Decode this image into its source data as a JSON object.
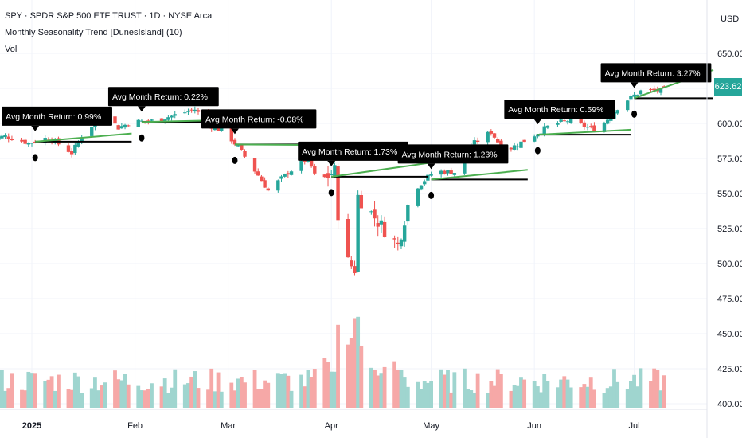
{
  "header": {
    "symbol_line": "SPY · SPDR S&P 500 ETF TRUST · 1D · NYSE Arca",
    "indicator": "Monthly Seasonality Trend [DunesIsland] (10)",
    "volume": "Vol"
  },
  "axis": {
    "currency": "USD",
    "price_ticks": [
      "650.00",
      "625.00",
      "600.00",
      "575.00",
      "550.00",
      "525.00",
      "500.00",
      "475.00",
      "450.00",
      "425.00",
      "400.00"
    ],
    "time_labels": [
      "2025",
      "Feb",
      "Mar",
      "Apr",
      "May",
      "Jun",
      "Jul"
    ]
  },
  "last_price": "623.62",
  "colors": {
    "up": "#26a69a",
    "down": "#ef5350",
    "vol_up": "#9fd5cf",
    "vol_down": "#f6a8a7",
    "projection": "#4caf50",
    "month_open_line": "#000000",
    "grid": "#f0f3fa",
    "price_badge": "#26a69a"
  },
  "chart_data": {
    "type": "candlestick",
    "title": "SPY · SPDR S&P 500 ETF TRUST · 1D · NYSE Arca",
    "ylabel": "USD",
    "ylim": [
      395,
      660
    ],
    "price_series": [
      [
        "Dec 18",
        588
      ],
      [
        "Dec 24",
        591
      ],
      [
        "Dec 31",
        586
      ],
      [
        "Jan 6",
        590
      ],
      [
        "Jan 13",
        579
      ],
      [
        "Jan 17",
        595
      ],
      [
        "Jan 23",
        606
      ],
      [
        "Jan 27",
        597
      ],
      [
        "Jan 31",
        601
      ],
      [
        "Feb 7",
        602
      ],
      [
        "Feb 19",
        610
      ],
      [
        "Feb 24",
        598
      ],
      [
        "Feb 28",
        594
      ],
      [
        "Mar 4",
        583
      ],
      [
        "Mar 10",
        563
      ],
      [
        "Mar 13",
        552
      ],
      [
        "Mar 19",
        565
      ],
      [
        "Mar 25",
        575
      ],
      [
        "Mar 28",
        557
      ],
      [
        "Apr 2",
        566
      ],
      [
        "Apr 4",
        506
      ],
      [
        "Apr 8",
        496
      ],
      [
        "Apr 9",
        548
      ],
      [
        "Apr 16",
        527
      ],
      [
        "Apr 21",
        513
      ],
      [
        "Apr 25",
        551
      ],
      [
        "May 2",
        566
      ],
      [
        "May 9",
        565
      ],
      [
        "May 12",
        583
      ],
      [
        "May 19",
        594
      ],
      [
        "May 23",
        580
      ],
      [
        "May 30",
        589
      ],
      [
        "Jun 6",
        599
      ],
      [
        "Jun 11",
        602
      ],
      [
        "Jun 20",
        595
      ],
      [
        "Jun 27",
        614
      ],
      [
        "Jul 3",
        623
      ],
      [
        "Jul 11",
        623.62
      ]
    ],
    "monthly_annotations": [
      {
        "month": "Jan",
        "label": "Avg Month Return: 0.99%",
        "open": 587,
        "projected_end": 592.8
      },
      {
        "month": "Feb",
        "label": "Avg Month Return: 0.22%",
        "open": 601,
        "projected_end": 602.3
      },
      {
        "month": "Mar",
        "label": "Avg Month Return: -0.08%",
        "open": 585,
        "projected_end": 584.5
      },
      {
        "month": "Apr",
        "label": "Avg Month Return: 1.73%",
        "open": 562,
        "projected_end": 571.7
      },
      {
        "month": "May",
        "label": "Avg Month Return: 1.23%",
        "open": 560,
        "projected_end": 566.9
      },
      {
        "month": "Jun",
        "label": "Avg Month Return: 0.59%",
        "open": 592,
        "projected_end": 595.5
      },
      {
        "month": "Jul",
        "label": "Avg Month Return: 3.27%",
        "open": 618,
        "projected_end": 638.2
      }
    ],
    "volume_style": "relative bars at bottom, spike in early April"
  }
}
